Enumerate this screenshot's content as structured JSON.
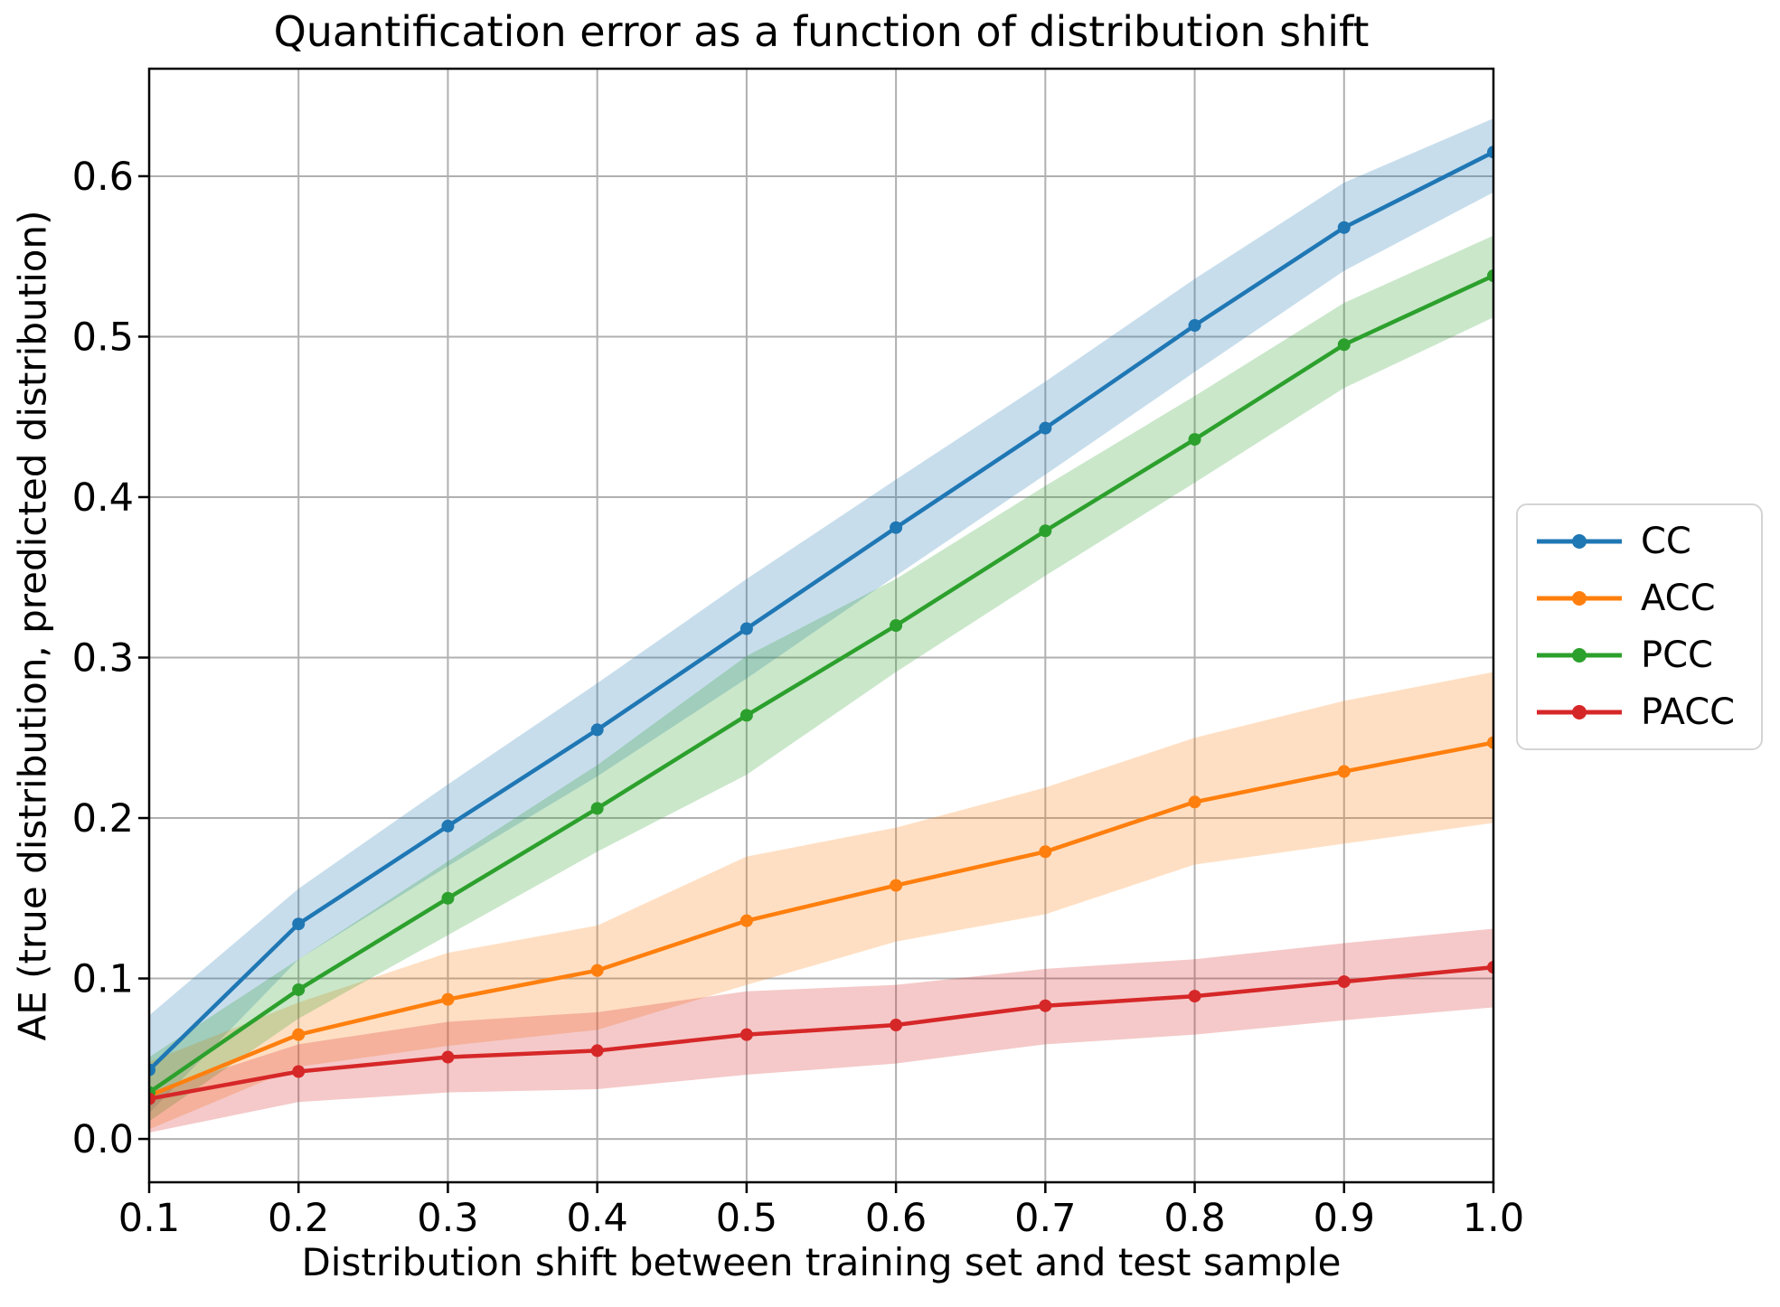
{
  "chart_data": {
    "type": "line",
    "title": "Quantification error as a function of distribution shift",
    "xlabel": "Distribution shift between training set and test sample",
    "ylabel": "AE (true distribution, predicted distribution)",
    "x": [
      0.1,
      0.2,
      0.3,
      0.4,
      0.5,
      0.6,
      0.7,
      0.8,
      0.9,
      1.0
    ],
    "x_tick_labels": [
      "0.1",
      "0.2",
      "0.3",
      "0.4",
      "0.5",
      "0.6",
      "0.7",
      "0.8",
      "0.9",
      "1.0"
    ],
    "y_tick_values": [
      0.0,
      0.1,
      0.2,
      0.3,
      0.4,
      0.5,
      0.6
    ],
    "y_tick_labels": [
      "0.0",
      "0.1",
      "0.2",
      "0.3",
      "0.4",
      "0.5",
      "0.6"
    ],
    "xlim": [
      0.1,
      1.0
    ],
    "ylim": [
      -0.027,
      0.667
    ],
    "grid": true,
    "grid_color": "#b0b0b0",
    "frame_color": "#000000",
    "band_opacity": 0.25,
    "legend_position": "outside-right",
    "series": [
      {
        "name": "CC",
        "color": "#1f77b4",
        "values": [
          0.043,
          0.134,
          0.195,
          0.255,
          0.318,
          0.381,
          0.443,
          0.507,
          0.568,
          0.615
        ],
        "lower": [
          0.016,
          0.112,
          0.17,
          0.226,
          0.287,
          0.351,
          0.414,
          0.478,
          0.541,
          0.59
        ],
        "upper": [
          0.077,
          0.156,
          0.221,
          0.284,
          0.349,
          0.411,
          0.472,
          0.536,
          0.596,
          0.636
        ]
      },
      {
        "name": "ACC",
        "color": "#ff7f0e",
        "values": [
          0.027,
          0.065,
          0.087,
          0.105,
          0.136,
          0.158,
          0.179,
          0.21,
          0.229,
          0.247
        ],
        "lower": [
          0.006,
          0.045,
          0.058,
          0.068,
          0.096,
          0.123,
          0.14,
          0.171,
          0.184,
          0.197
        ],
        "upper": [
          0.048,
          0.085,
          0.116,
          0.133,
          0.176,
          0.194,
          0.219,
          0.25,
          0.273,
          0.291
        ]
      },
      {
        "name": "PCC",
        "color": "#2ca02c",
        "values": [
          0.029,
          0.093,
          0.15,
          0.206,
          0.264,
          0.32,
          0.379,
          0.436,
          0.495,
          0.538
        ],
        "lower": [
          0.011,
          0.075,
          0.127,
          0.179,
          0.227,
          0.291,
          0.351,
          0.409,
          0.468,
          0.512
        ],
        "upper": [
          0.051,
          0.112,
          0.173,
          0.233,
          0.301,
          0.349,
          0.407,
          0.463,
          0.521,
          0.563
        ]
      },
      {
        "name": "PACC",
        "color": "#d62728",
        "values": [
          0.025,
          0.042,
          0.051,
          0.055,
          0.065,
          0.071,
          0.083,
          0.089,
          0.098,
          0.107
        ],
        "lower": [
          0.004,
          0.023,
          0.029,
          0.031,
          0.04,
          0.047,
          0.059,
          0.065,
          0.074,
          0.082
        ],
        "upper": [
          0.029,
          0.059,
          0.073,
          0.079,
          0.092,
          0.096,
          0.106,
          0.112,
          0.122,
          0.131
        ]
      }
    ]
  }
}
